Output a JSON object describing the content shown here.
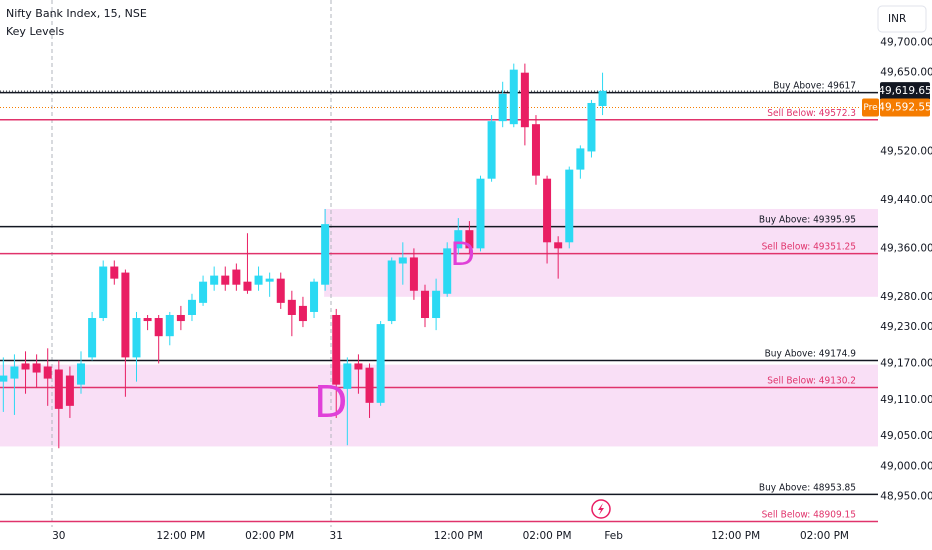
{
  "chart_data": {
    "type": "candlestick",
    "title": "Nifty Bank Index, 15, NSE",
    "subtitle": "Key Levels",
    "currency": "INR",
    "up_color": "#2bd9f3",
    "down_color": "#e91e63",
    "open": [
      49140,
      49145,
      49170,
      49170,
      49165,
      49160,
      49150,
      49135,
      49180,
      49245,
      49330,
      49320,
      49180,
      49245,
      49245,
      49215,
      49250,
      49250,
      49270,
      49300,
      49315,
      49325,
      49305,
      49300,
      49305,
      49310,
      49275,
      49265,
      49255,
      49300,
      49250,
      49128,
      49170,
      49163,
      49105,
      49240,
      49335,
      49345,
      49290,
      49245,
      49285,
      49360,
      49390,
      49360,
      49475,
      49570,
      49565,
      49650,
      49565,
      49475,
      49370,
      49370,
      49490,
      49520,
      49595
    ],
    "high": [
      49180,
      49185,
      49190,
      49185,
      49195,
      49175,
      49165,
      49190,
      49255,
      49340,
      49340,
      49325,
      49255,
      49250,
      49250,
      49255,
      49265,
      49285,
      49315,
      49330,
      49330,
      49335,
      49385,
      49330,
      49320,
      49320,
      49290,
      49280,
      49310,
      49425,
      49260,
      49180,
      49185,
      49170,
      49240,
      49345,
      49370,
      49360,
      49300,
      49310,
      49370,
      49410,
      49405,
      49480,
      49580,
      49635,
      49665,
      49665,
      49580,
      49480,
      49380,
      49495,
      49530,
      49605,
      49650
    ],
    "low": [
      49090,
      49085,
      49120,
      49130,
      49100,
      49030,
      49080,
      49120,
      49175,
      49240,
      49300,
      49115,
      49140,
      49225,
      49170,
      49200,
      49225,
      49240,
      49265,
      49290,
      49290,
      49290,
      49285,
      49290,
      49280,
      49260,
      49215,
      49230,
      49245,
      49290,
      49080,
      49035,
      49120,
      49080,
      49100,
      49235,
      49300,
      49275,
      49230,
      49225,
      49280,
      49350,
      49350,
      49355,
      49470,
      49560,
      49560,
      49530,
      49465,
      49335,
      49310,
      49360,
      49475,
      49510,
      49580
    ],
    "close": [
      49150,
      49165,
      49160,
      49155,
      49145,
      49095,
      49100,
      49170,
      49245,
      49330,
      49310,
      49180,
      49245,
      49240,
      49215,
      49250,
      49240,
      49275,
      49305,
      49315,
      49300,
      49300,
      49290,
      49315,
      49310,
      49270,
      49250,
      49240,
      49305,
      49400,
      49135,
      49170,
      49160,
      49105,
      49235,
      49340,
      49345,
      49290,
      49245,
      49290,
      49360,
      49390,
      49360,
      49475,
      49570,
      49615,
      49655,
      49560,
      49480,
      49370,
      49360,
      49490,
      49525,
      49600,
      49620
    ],
    "xlim": [
      -0.3,
      77.2
    ],
    "xticks": [
      {
        "value": 5,
        "label": "30"
      },
      {
        "value": 16,
        "label": "12:00 PM"
      },
      {
        "value": 24,
        "label": "02:00 PM"
      },
      {
        "value": 30,
        "label": "31"
      },
      {
        "value": 41,
        "label": "12:00 PM"
      },
      {
        "value": 49,
        "label": "02:00 PM"
      },
      {
        "value": 55,
        "label": "Feb"
      },
      {
        "value": 66,
        "label": "12:00 PM"
      },
      {
        "value": 74,
        "label": "02:00 PM"
      }
    ],
    "ylim": [
      48900,
      49770
    ],
    "yticks": [
      {
        "value": 49700,
        "label": "49,700.00"
      },
      {
        "value": 49650,
        "label": "49,650.00"
      },
      {
        "value": 49520,
        "label": "49,520.00"
      },
      {
        "value": 49440,
        "label": "49,440.00"
      },
      {
        "value": 49360,
        "label": "49,360.00"
      },
      {
        "value": 49280,
        "label": "49,280.00"
      },
      {
        "value": 49230,
        "label": "49,230.00"
      },
      {
        "value": 49170,
        "label": "49,170.00"
      },
      {
        "value": 49110,
        "label": "49,110.00"
      },
      {
        "value": 49050,
        "label": "49,050.00"
      },
      {
        "value": 49000,
        "label": "49,000.00"
      },
      {
        "value": 48950,
        "label": "48,950.00"
      }
    ],
    "levels": [
      {
        "label": "Buy Above: 49617",
        "value": 49617,
        "color": "#131722"
      },
      {
        "label": "Sell Below: 49572.3",
        "value": 49572.3,
        "color": "#e0336b"
      },
      {
        "label": "Buy Above: 49395.95",
        "value": 49395.95,
        "color": "#131722"
      },
      {
        "label": "Sell Below: 49351.25",
        "value": 49351.25,
        "color": "#e0336b"
      },
      {
        "label": "Buy Above: 49174.9",
        "value": 49174.9,
        "color": "#131722"
      },
      {
        "label": "Sell Below: 49130.2",
        "value": 49130.2,
        "color": "#e0336b"
      },
      {
        "label": "Buy Above: 48953.85",
        "value": 48953.85,
        "color": "#131722"
      },
      {
        "label": "Sell Below: 48909.15",
        "value": 48909.15,
        "color": "#e0336b"
      }
    ],
    "zones": [
      {
        "start": 29,
        "top": 49425,
        "bottom": 49280,
        "label": "D",
        "label_x": 41.4,
        "label_y": 49347
      },
      {
        "start": -0.3,
        "top": 49168,
        "bottom": 49033,
        "label": "D",
        "label_x": 29.5,
        "label_y": 49101
      }
    ],
    "zone_color": "#f7d4f3",
    "last_price": {
      "value": 49619.65,
      "label": "49,619.65"
    },
    "pre_price": {
      "value": 49592.55,
      "label": "49,592.55",
      "tag": "Pre",
      "color": "#f57c00"
    }
  }
}
